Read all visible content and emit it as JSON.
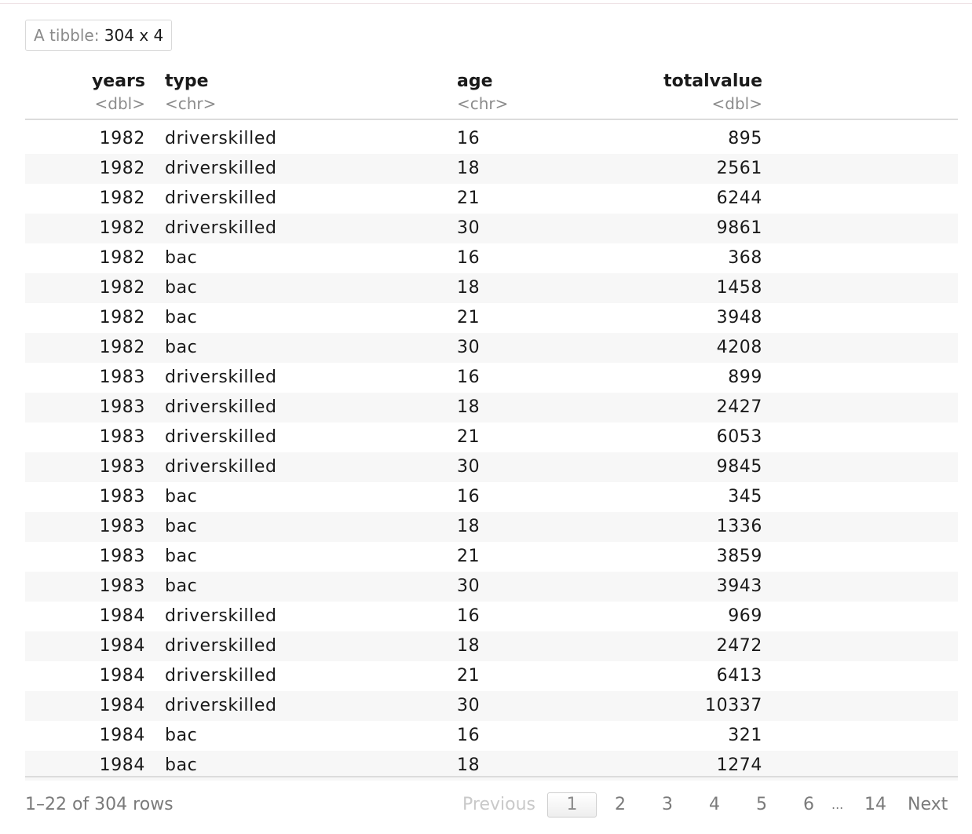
{
  "tibble": {
    "label": "A tibble:",
    "dims": "304 x 4"
  },
  "columns": [
    {
      "name": "years",
      "type": "<dbl>"
    },
    {
      "name": "type",
      "type": "<chr>"
    },
    {
      "name": "age",
      "type": "<chr>"
    },
    {
      "name": "totalvalue",
      "type": "<dbl>"
    }
  ],
  "rows": [
    [
      "1982",
      "driverskilled",
      "16",
      "895"
    ],
    [
      "1982",
      "driverskilled",
      "18",
      "2561"
    ],
    [
      "1982",
      "driverskilled",
      "21",
      "6244"
    ],
    [
      "1982",
      "driverskilled",
      "30",
      "9861"
    ],
    [
      "1982",
      "bac",
      "16",
      "368"
    ],
    [
      "1982",
      "bac",
      "18",
      "1458"
    ],
    [
      "1982",
      "bac",
      "21",
      "3948"
    ],
    [
      "1982",
      "bac",
      "30",
      "4208"
    ],
    [
      "1983",
      "driverskilled",
      "16",
      "899"
    ],
    [
      "1983",
      "driverskilled",
      "18",
      "2427"
    ],
    [
      "1983",
      "driverskilled",
      "21",
      "6053"
    ],
    [
      "1983",
      "driverskilled",
      "30",
      "9845"
    ],
    [
      "1983",
      "bac",
      "16",
      "345"
    ],
    [
      "1983",
      "bac",
      "18",
      "1336"
    ],
    [
      "1983",
      "bac",
      "21",
      "3859"
    ],
    [
      "1983",
      "bac",
      "30",
      "3943"
    ],
    [
      "1984",
      "driverskilled",
      "16",
      "969"
    ],
    [
      "1984",
      "driverskilled",
      "18",
      "2472"
    ],
    [
      "1984",
      "driverskilled",
      "21",
      "6413"
    ],
    [
      "1984",
      "driverskilled",
      "30",
      "10337"
    ],
    [
      "1984",
      "bac",
      "16",
      "321"
    ],
    [
      "1984",
      "bac",
      "18",
      "1274"
    ]
  ],
  "footer": {
    "rows_info": "1–22 of 304 rows",
    "previous": "Previous",
    "pages": [
      "1",
      "2",
      "3",
      "4",
      "5",
      "6"
    ],
    "ellipsis": "...",
    "last_page": "14",
    "next": "Next",
    "current_page": "1"
  }
}
